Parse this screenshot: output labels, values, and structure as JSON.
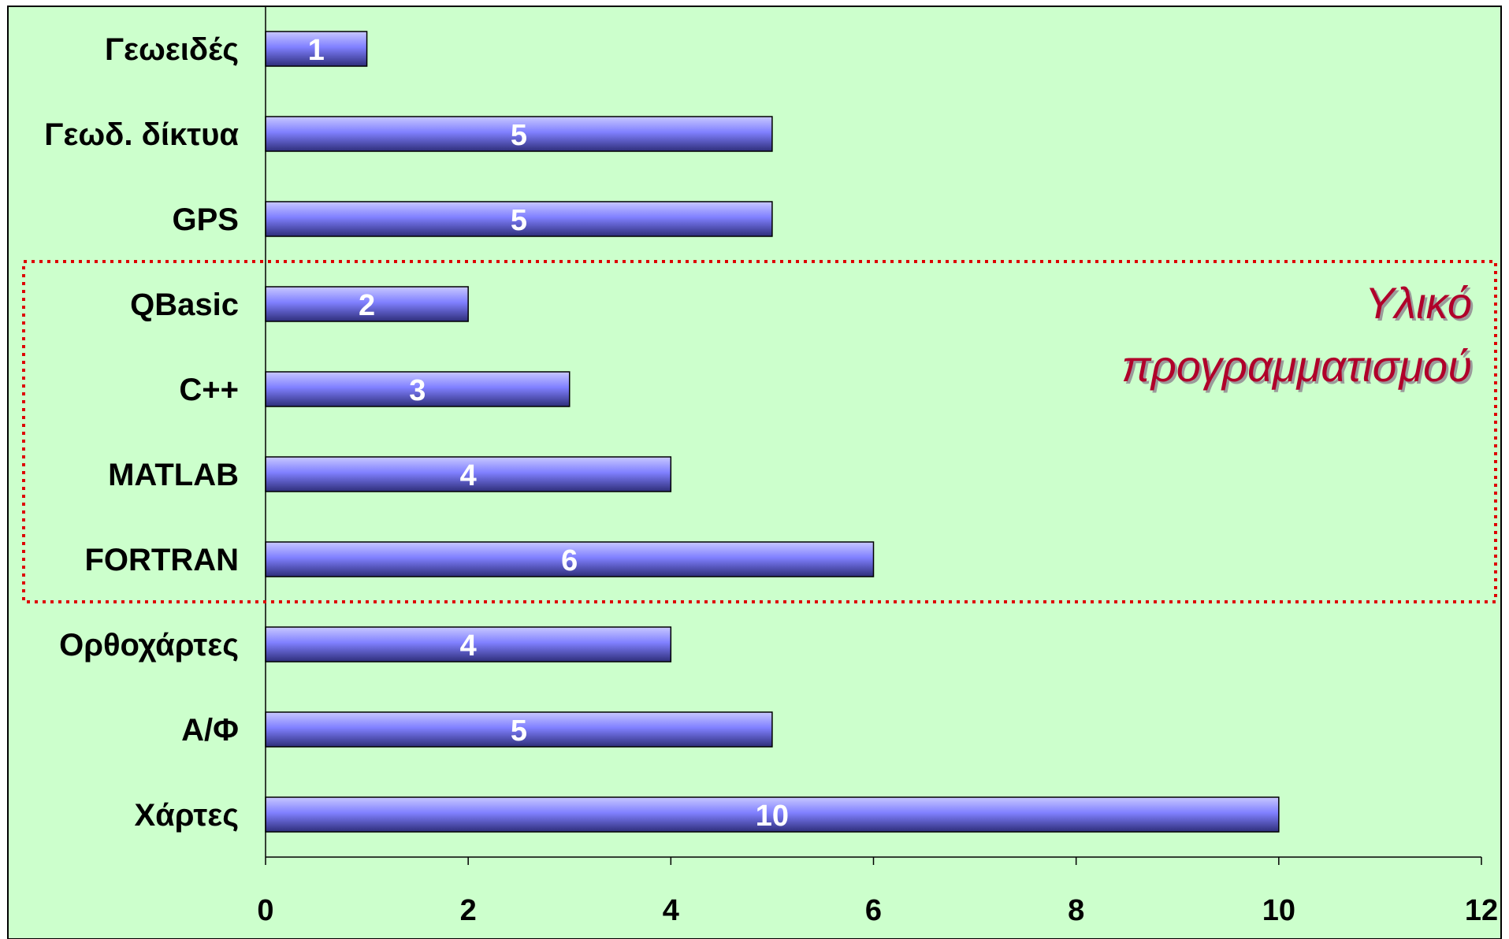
{
  "chart_data": {
    "type": "bar",
    "orientation": "horizontal",
    "categories": [
      "Γεωειδές",
      "Γεωδ. δίκτυα",
      "GPS",
      "QBasic",
      "C++",
      "MATLAB",
      "FORTRAN",
      "Ορθοχάρτες",
      "Α/Φ",
      "Χάρτες"
    ],
    "values": [
      1,
      5,
      5,
      2,
      3,
      4,
      6,
      4,
      5,
      10
    ],
    "data_labels": [
      "1",
      "5",
      "5",
      "2",
      "3",
      "4",
      "6",
      "4",
      "5",
      "10"
    ],
    "xlim": [
      0,
      12
    ],
    "xticks": [
      0,
      2,
      4,
      6,
      8,
      10,
      12
    ],
    "xtick_labels": [
      "0",
      "2",
      "4",
      "6",
      "8",
      "10",
      "12"
    ],
    "grid": false,
    "legend": "none",
    "annotation": {
      "lines": [
        "Υλικό",
        "προγραμματισμού"
      ],
      "highlighted_categories": [
        "QBasic",
        "C++",
        "MATLAB",
        "FORTRAN"
      ]
    },
    "colors": {
      "background": "#ccffcc",
      "bar": "#8080ff",
      "bar_dark": "#2e2e7a",
      "bar_light": "#c8c8ff",
      "annotation_box": "#dd0000",
      "annotation_text": "#b0002a"
    }
  }
}
